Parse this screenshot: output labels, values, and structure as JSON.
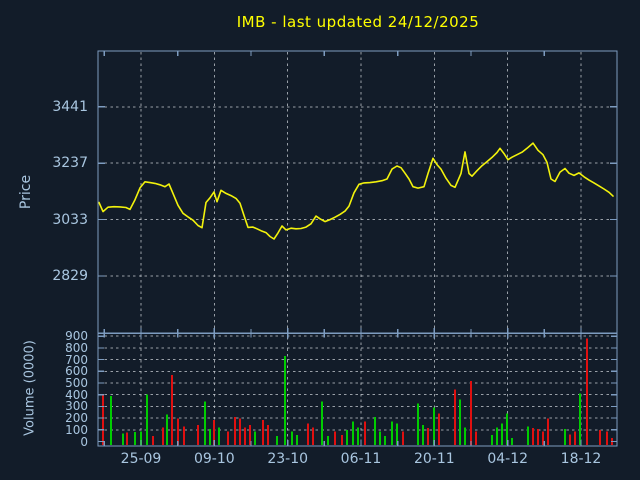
{
  "title": "IMB - last updated 24/12/2025",
  "colors": {
    "background": "#121c29",
    "title": "#ffff00",
    "axis": "#7d9cc0",
    "tick_text": "#a9c6e0",
    "grid": "#c7ccd3",
    "price_line": "#f2f20c",
    "volume_up": "#00cc00",
    "volume_down": "#e01010"
  },
  "chart_data": {
    "type": "line+bar",
    "title": "IMB - last updated 24/12/2025",
    "symbol": "IMB",
    "last_updated": "24/12/2025",
    "grid": true,
    "legend": "none",
    "x_axis": {
      "tick_labels": [
        "25-09",
        "09-10",
        "23-10",
        "06-11",
        "20-11",
        "04-12",
        "18-12"
      ]
    },
    "price_panel": {
      "type": "line",
      "ylabel": "Price",
      "yticks": [
        3441,
        3237,
        3033,
        2829
      ],
      "ylim": [
        2623,
        3643
      ],
      "series": [
        {
          "name": "IMB price",
          "x_unit": "px",
          "points": [
            [
              99,
              3095
            ],
            [
              103,
              3062
            ],
            [
              108,
              3078
            ],
            [
              114,
              3080
            ],
            [
              120,
              3079
            ],
            [
              126,
              3077
            ],
            [
              130,
              3070
            ],
            [
              135,
              3105
            ],
            [
              140,
              3148
            ],
            [
              145,
              3170
            ],
            [
              150,
              3167
            ],
            [
              155,
              3164
            ],
            [
              160,
              3159
            ],
            [
              165,
              3152
            ],
            [
              169,
              3162
            ],
            [
              173,
              3128
            ],
            [
              178,
              3085
            ],
            [
              183,
              3056
            ],
            [
              188,
              3043
            ],
            [
              193,
              3031
            ],
            [
              198,
              3012
            ],
            [
              202,
              3004
            ],
            [
              206,
              3095
            ],
            [
              210,
              3112
            ],
            [
              214,
              3133
            ],
            [
              217,
              3098
            ],
            [
              221,
              3139
            ],
            [
              226,
              3128
            ],
            [
              231,
              3120
            ],
            [
              236,
              3110
            ],
            [
              240,
              3092
            ],
            [
              244,
              3048
            ],
            [
              248,
              3005
            ],
            [
              253,
              3006
            ],
            [
              257,
              3000
            ],
            [
              261,
              2993
            ],
            [
              266,
              2986
            ],
            [
              270,
              2972
            ],
            [
              274,
              2963
            ],
            [
              278,
              2985
            ],
            [
              282,
              3010
            ],
            [
              286,
              2996
            ],
            [
              291,
              3002
            ],
            [
              296,
              3000
            ],
            [
              301,
              3001
            ],
            [
              306,
              3006
            ],
            [
              311,
              3018
            ],
            [
              316,
              3046
            ],
            [
              320,
              3036
            ],
            [
              325,
              3026
            ],
            [
              330,
              3033
            ],
            [
              335,
              3042
            ],
            [
              340,
              3052
            ],
            [
              345,
              3064
            ],
            [
              349,
              3082
            ],
            [
              354,
              3130
            ],
            [
              359,
              3161
            ],
            [
              364,
              3166
            ],
            [
              370,
              3167
            ],
            [
              376,
              3170
            ],
            [
              382,
              3174
            ],
            [
              387,
              3180
            ],
            [
              392,
              3216
            ],
            [
              397,
              3227
            ],
            [
              401,
              3221
            ],
            [
              405,
              3201
            ],
            [
              409,
              3180
            ],
            [
              413,
              3152
            ],
            [
              418,
              3147
            ],
            [
              424,
              3152
            ],
            [
              428,
              3200
            ],
            [
              433,
              3255
            ],
            [
              437,
              3232
            ],
            [
              441,
              3216
            ],
            [
              446,
              3183
            ],
            [
              451,
              3157
            ],
            [
              455,
              3150
            ],
            [
              461,
              3200
            ],
            [
              465,
              3278
            ],
            [
              469,
              3200
            ],
            [
              472,
              3190
            ],
            [
              477,
              3210
            ],
            [
              482,
              3228
            ],
            [
              487,
              3243
            ],
            [
              492,
              3258
            ],
            [
              497,
              3276
            ],
            [
              500,
              3291
            ],
            [
              504,
              3272
            ],
            [
              508,
              3250
            ],
            [
              512,
              3259
            ],
            [
              517,
              3268
            ],
            [
              522,
              3277
            ],
            [
              527,
              3291
            ],
            [
              533,
              3310
            ],
            [
              538,
              3284
            ],
            [
              543,
              3268
            ],
            [
              547,
              3240
            ],
            [
              551,
              3180
            ],
            [
              555,
              3171
            ],
            [
              560,
              3205
            ],
            [
              565,
              3218
            ],
            [
              569,
              3201
            ],
            [
              574,
              3193
            ],
            [
              579,
              3202
            ],
            [
              584,
              3188
            ],
            [
              589,
              3176
            ],
            [
              594,
              3166
            ],
            [
              599,
              3155
            ],
            [
              604,
              3144
            ],
            [
              609,
              3132
            ],
            [
              613,
              3118
            ]
          ]
        }
      ]
    },
    "volume_panel": {
      "type": "bar",
      "ylabel": "Volume (0000)",
      "yticks": [
        900,
        800,
        700,
        600,
        500,
        400,
        300,
        200,
        100,
        0
      ],
      "ylim": [
        0,
        928
      ],
      "x_unit": "px",
      "bars": [
        [
          103,
          400,
          "down"
        ],
        [
          111,
          390,
          "up"
        ],
        [
          123,
          70,
          "up"
        ],
        [
          127,
          75,
          "down"
        ],
        [
          135,
          80,
          "up"
        ],
        [
          141,
          85,
          "up"
        ],
        [
          147,
          400,
          "up"
        ],
        [
          153,
          45,
          "down"
        ],
        [
          163,
          120,
          "down"
        ],
        [
          167,
          230,
          "up"
        ],
        [
          172,
          570,
          "down"
        ],
        [
          178,
          195,
          "down"
        ],
        [
          184,
          130,
          "down"
        ],
        [
          198,
          140,
          "down"
        ],
        [
          205,
          340,
          "up"
        ],
        [
          210,
          105,
          "up"
        ],
        [
          214,
          185,
          "down"
        ],
        [
          219,
          120,
          "up"
        ],
        [
          228,
          85,
          "down"
        ],
        [
          235,
          210,
          "down"
        ],
        [
          240,
          195,
          "down"
        ],
        [
          245,
          120,
          "down"
        ],
        [
          250,
          140,
          "down"
        ],
        [
          255,
          85,
          "up"
        ],
        [
          263,
          185,
          "down"
        ],
        [
          268,
          140,
          "down"
        ],
        [
          277,
          45,
          "up"
        ],
        [
          285,
          730,
          "up"
        ],
        [
          292,
          85,
          "up"
        ],
        [
          297,
          55,
          "up"
        ],
        [
          308,
          155,
          "down"
        ],
        [
          313,
          120,
          "down"
        ],
        [
          322,
          340,
          "up"
        ],
        [
          328,
          45,
          "up"
        ],
        [
          335,
          85,
          "down"
        ],
        [
          342,
          55,
          "down"
        ],
        [
          347,
          100,
          "up"
        ],
        [
          353,
          170,
          "up"
        ],
        [
          358,
          120,
          "up"
        ],
        [
          365,
          170,
          "down"
        ],
        [
          375,
          210,
          "up"
        ],
        [
          380,
          85,
          "up"
        ],
        [
          385,
          45,
          "up"
        ],
        [
          392,
          170,
          "up"
        ],
        [
          397,
          155,
          "up"
        ],
        [
          403,
          85,
          "down"
        ],
        [
          418,
          325,
          "up"
        ],
        [
          423,
          140,
          "up"
        ],
        [
          428,
          115,
          "down"
        ],
        [
          434,
          290,
          "up"
        ],
        [
          439,
          240,
          "down"
        ],
        [
          455,
          445,
          "down"
        ],
        [
          460,
          360,
          "up"
        ],
        [
          465,
          120,
          "up"
        ],
        [
          471,
          515,
          "down"
        ],
        [
          476,
          85,
          "down"
        ],
        [
          492,
          55,
          "up"
        ],
        [
          497,
          120,
          "up"
        ],
        [
          502,
          155,
          "up"
        ],
        [
          507,
          240,
          "up"
        ],
        [
          512,
          30,
          "up"
        ],
        [
          528,
          130,
          "up"
        ],
        [
          533,
          115,
          "down"
        ],
        [
          538,
          105,
          "down"
        ],
        [
          543,
          85,
          "down"
        ],
        [
          548,
          195,
          "down"
        ],
        [
          565,
          105,
          "up"
        ],
        [
          570,
          60,
          "down"
        ],
        [
          575,
          85,
          "down"
        ],
        [
          580,
          410,
          "up"
        ],
        [
          587,
          880,
          "down"
        ],
        [
          600,
          100,
          "down"
        ],
        [
          607,
          85,
          "down"
        ],
        [
          612,
          30,
          "down"
        ]
      ]
    }
  }
}
